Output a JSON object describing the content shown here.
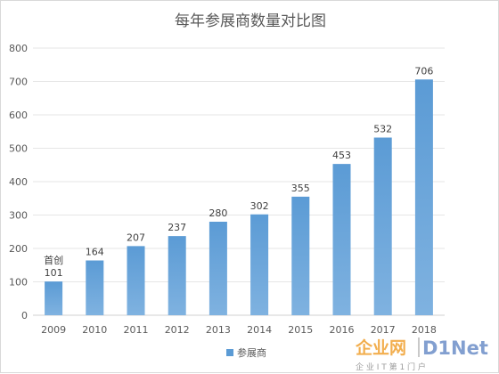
{
  "chart_data": {
    "type": "bar",
    "title": "每年参展商数量对比图",
    "categories": [
      "2009",
      "2010",
      "2011",
      "2012",
      "2013",
      "2014",
      "2015",
      "2016",
      "2017",
      "2018"
    ],
    "series": [
      {
        "name": "参展商",
        "values": [
          101,
          164,
          207,
          237,
          280,
          302,
          355,
          453,
          532,
          706
        ]
      }
    ],
    "ylim": [
      0,
      800
    ],
    "yticks": [
      0,
      100,
      200,
      300,
      400,
      500,
      600,
      700,
      800
    ],
    "grid": true,
    "legend_position": "bottom",
    "annotations": [
      {
        "category": "2009",
        "text": "首创"
      }
    ],
    "bar_color_top": "#5b9bd5",
    "bar_color_bottom": "#7fb2e0"
  },
  "watermark": {
    "brand_cn": "企业网",
    "brand_en": "D1Net",
    "tagline": "企 业 I T 第 1 门 户"
  }
}
